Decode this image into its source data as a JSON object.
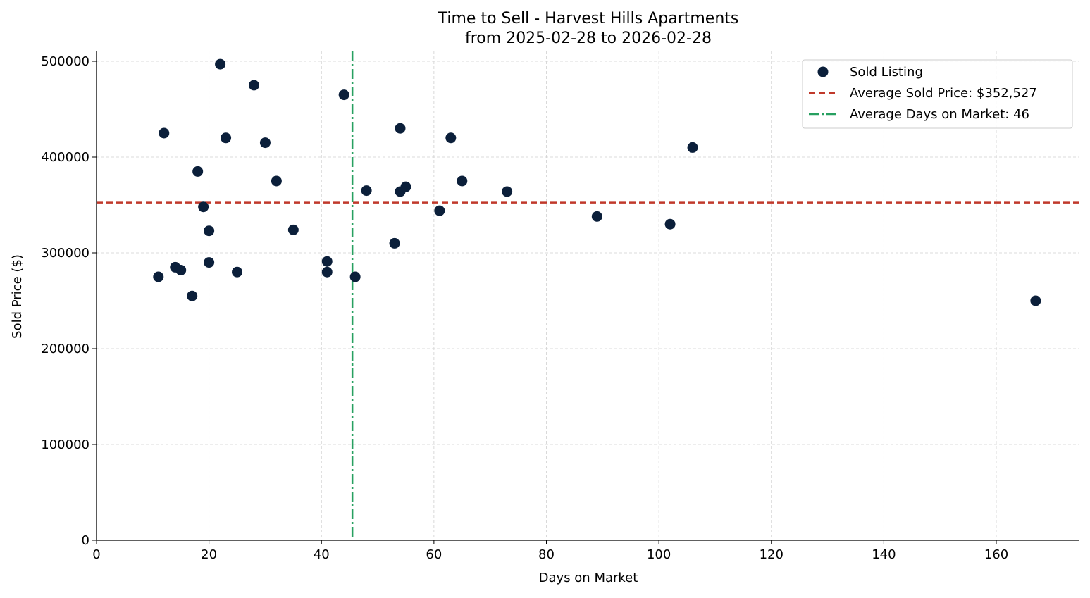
{
  "chart_data": {
    "type": "scatter",
    "title": "Time to Sell - Harvest Hills Apartments",
    "subtitle": "from 2025-02-28 to 2026-02-28",
    "xlabel": "Days on Market",
    "ylabel": "Sold Price ($)",
    "xlim": [
      0,
      175
    ],
    "ylim": [
      0,
      510000
    ],
    "xticks": [
      0,
      20,
      40,
      60,
      80,
      100,
      120,
      140,
      160
    ],
    "yticks": [
      0,
      100000,
      200000,
      300000,
      400000,
      500000
    ],
    "grid": true,
    "legend_position": "top-right",
    "series": [
      {
        "name": "Sold Listing",
        "color": "#0b1f3a",
        "points": [
          [
            11,
            275000
          ],
          [
            12,
            425000
          ],
          [
            14,
            285000
          ],
          [
            15,
            282000
          ],
          [
            17,
            255000
          ],
          [
            18,
            385000
          ],
          [
            19,
            348000
          ],
          [
            20,
            323000
          ],
          [
            20,
            290000
          ],
          [
            22,
            497000
          ],
          [
            23,
            420000
          ],
          [
            25,
            280000
          ],
          [
            28,
            475000
          ],
          [
            30,
            415000
          ],
          [
            32,
            375000
          ],
          [
            35,
            324000
          ],
          [
            41,
            291000
          ],
          [
            41,
            280000
          ],
          [
            44,
            465000
          ],
          [
            46,
            275000
          ],
          [
            48,
            365000
          ],
          [
            53,
            310000
          ],
          [
            54,
            430000
          ],
          [
            54,
            364000
          ],
          [
            55,
            369000
          ],
          [
            61,
            344000
          ],
          [
            63,
            420000
          ],
          [
            65,
            375000
          ],
          [
            73,
            364000
          ],
          [
            89,
            338000
          ],
          [
            102,
            330000
          ],
          [
            106,
            410000
          ],
          [
            167,
            250000
          ]
        ]
      }
    ],
    "reference_lines": [
      {
        "name": "Average Sold Price: $352,527",
        "axis": "y",
        "value": 352527,
        "color": "#c0392b",
        "style": "dashed"
      },
      {
        "name": "Average Days on Market: 46",
        "axis": "x",
        "value": 45.5,
        "color": "#27a060",
        "style": "dashdot"
      }
    ]
  }
}
